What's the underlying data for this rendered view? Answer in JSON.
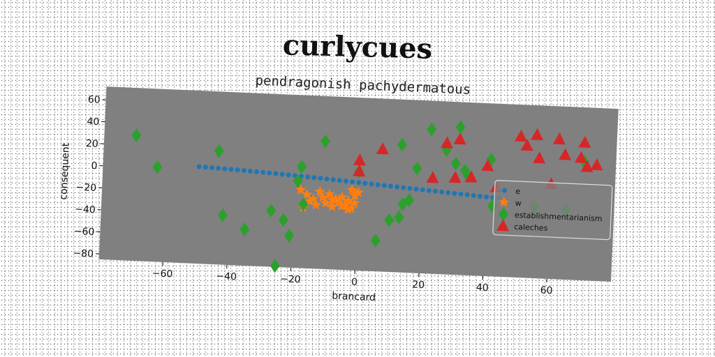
{
  "title": "curlycues",
  "chart_data": {
    "type": "scatter",
    "subtitle": "pendragonish pachydermatous",
    "xlabel": "brancard",
    "ylabel": "consequent",
    "xlim": [
      -80,
      80
    ],
    "ylim": [
      -85,
      72
    ],
    "xticks": [
      -60,
      -40,
      -20,
      0,
      20,
      40,
      60
    ],
    "yticks": [
      60,
      40,
      20,
      0,
      -20,
      -40,
      -60,
      -80
    ],
    "legend_position": "center-right",
    "grid": false,
    "colors": {
      "background": "#808080"
    },
    "series": [
      {
        "name": "e",
        "color": "#1f77b4",
        "marker": "circle",
        "points": [
          [
            -50,
            3
          ],
          [
            -48,
            2.8
          ],
          [
            -46,
            2.6
          ],
          [
            -44,
            2.4
          ],
          [
            -42,
            2.1
          ],
          [
            -40,
            1.9
          ],
          [
            -38,
            1.6
          ],
          [
            -36,
            1.3
          ],
          [
            -34,
            1.0
          ],
          [
            -32,
            0.7
          ],
          [
            -30,
            0.4
          ],
          [
            -28,
            0.1
          ],
          [
            -26,
            -0.2
          ],
          [
            -24,
            -0.6
          ],
          [
            -22,
            -0.9
          ],
          [
            -20,
            -1.3
          ],
          [
            -18,
            -1.6
          ],
          [
            -16,
            -2.0
          ],
          [
            -14,
            -2.3
          ],
          [
            -12,
            -2.7
          ],
          [
            -10,
            -3.1
          ],
          [
            -8,
            -3.5
          ],
          [
            -6,
            -3.9
          ],
          [
            -4,
            -4.3
          ],
          [
            -2,
            -4.7
          ],
          [
            0,
            -5.1
          ],
          [
            2,
            -5.5
          ],
          [
            4,
            -5.9
          ],
          [
            6,
            -6.3
          ],
          [
            8,
            -6.7
          ],
          [
            10,
            -7.1
          ],
          [
            12,
            -7.5
          ],
          [
            14,
            -7.9
          ],
          [
            16,
            -8.3
          ],
          [
            18,
            -8.7
          ],
          [
            20,
            -9.1
          ],
          [
            22,
            -9.5
          ],
          [
            24,
            -9.9
          ],
          [
            26,
            -10.3
          ],
          [
            28,
            -10.7
          ],
          [
            30,
            -11.1
          ],
          [
            32,
            -11.5
          ],
          [
            34,
            -11.9
          ],
          [
            36,
            -12.3
          ],
          [
            38,
            -12.7
          ],
          [
            40,
            -13.1
          ],
          [
            42,
            -13.5
          ],
          [
            44,
            -13.9
          ]
        ]
      },
      {
        "name": "w",
        "color": "#ff7f0e",
        "marker": "star",
        "points": [
          [
            -18,
            -14
          ],
          [
            -16,
            -18
          ],
          [
            -14,
            -22
          ],
          [
            -12,
            -15
          ],
          [
            -11,
            -20
          ],
          [
            -10,
            -25
          ],
          [
            -9,
            -17
          ],
          [
            -8,
            -28
          ],
          [
            -7,
            -21
          ],
          [
            -6,
            -24
          ],
          [
            -5,
            -19
          ],
          [
            -4,
            -26
          ],
          [
            -3,
            -22
          ],
          [
            -2,
            -29
          ],
          [
            -1,
            -17
          ],
          [
            0,
            -14
          ],
          [
            -1,
            -24
          ],
          [
            -3,
            -30
          ],
          [
            -5,
            -27
          ],
          [
            -8,
            -22
          ],
          [
            -13,
            -27
          ],
          [
            -15,
            -24
          ],
          [
            -17,
            -30
          ],
          [
            -2,
            -12
          ]
        ]
      },
      {
        "name": "establishmentarianism",
        "color": "#2ca02c",
        "marker": "diamond",
        "points": [
          [
            -70,
            29
          ],
          [
            -63,
            1
          ],
          [
            -44,
            18
          ],
          [
            -42,
            -40
          ],
          [
            -35,
            -52
          ],
          [
            -27,
            -34
          ],
          [
            -25,
            -84
          ],
          [
            -23,
            -42
          ],
          [
            -21,
            -56
          ],
          [
            -19,
            -6
          ],
          [
            -18,
            7
          ],
          [
            -17,
            -27
          ],
          [
            -11,
            31
          ],
          [
            0,
            5
          ],
          [
            6,
            -57
          ],
          [
            10,
            -38
          ],
          [
            13,
            31
          ],
          [
            13,
            -35
          ],
          [
            14,
            -23
          ],
          [
            16,
            -19
          ],
          [
            18,
            10
          ],
          [
            22,
            46
          ],
          [
            27,
            28
          ],
          [
            30,
            16
          ],
          [
            31,
            49
          ],
          [
            33,
            10
          ],
          [
            34,
            5
          ],
          [
            41,
            21
          ],
          [
            42,
            -21
          ],
          [
            70,
            23
          ],
          [
            65,
            -22
          ],
          [
            55,
            -20
          ]
        ]
      },
      {
        "name": "caleches",
        "color": "#d62728",
        "marker": "triangle",
        "points": [
          [
            0,
            15
          ],
          [
            0,
            5
          ],
          [
            7,
            26
          ],
          [
            23,
            2
          ],
          [
            27,
            34
          ],
          [
            30,
            3
          ],
          [
            31,
            38
          ],
          [
            35,
            4
          ],
          [
            40,
            15
          ],
          [
            43,
            -4
          ],
          [
            50,
            43
          ],
          [
            52,
            35
          ],
          [
            55,
            45
          ],
          [
            56,
            24
          ],
          [
            60,
            1
          ],
          [
            62,
            42
          ],
          [
            64,
            28
          ],
          [
            69,
            26
          ],
          [
            70,
            40
          ],
          [
            71,
            18
          ],
          [
            74,
            20
          ]
        ]
      }
    ]
  }
}
